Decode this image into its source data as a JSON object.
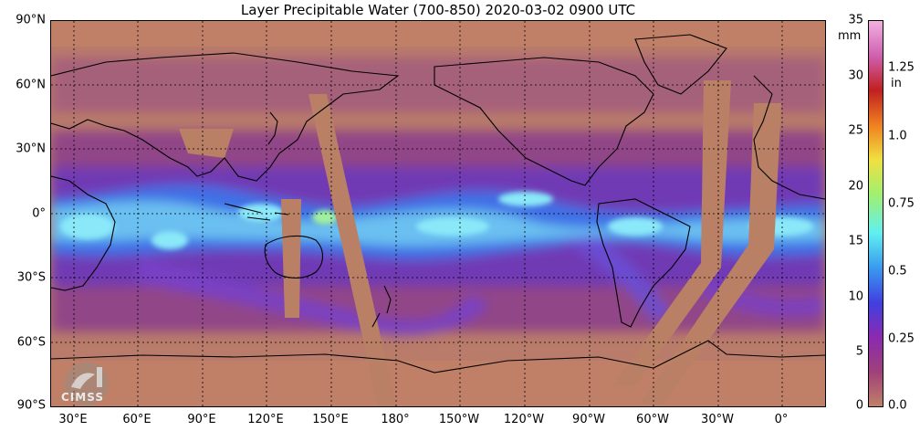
{
  "title": "Layer Precipitable Water (700-850)  2020-03-02 0900 UTC",
  "lat_labels": [
    "90°N",
    "60°N",
    "30°N",
    "0°",
    "30°S",
    "60°S",
    "90°S"
  ],
  "lon_labels": [
    "30°E",
    "60°E",
    "90°E",
    "120°E",
    "150°E",
    "180°",
    "150°W",
    "120°W",
    "90°W",
    "60°W",
    "30°W",
    "0°"
  ],
  "colorbar": {
    "unit_left": "mm",
    "unit_right": "in",
    "ticks_left": [
      "35",
      "30",
      "25",
      "20",
      "15",
      "10",
      "5",
      "0"
    ],
    "ticks_right": [
      "1.25",
      "1.0",
      "0.75",
      "0.5",
      "0.25",
      "0.0"
    ],
    "colors": [
      "#c08067",
      "#a0407a",
      "#8a2ab0",
      "#4040e0",
      "#3a9af0",
      "#60f0f0",
      "#a0f070",
      "#f0e040",
      "#f08020",
      "#c02020",
      "#d060b0",
      "#f0b0e0"
    ]
  },
  "colors": {
    "dry": "#b97b6a",
    "moist": "#8a3d8c",
    "wet": "#4a70e8",
    "very_wet": "#8ae8f8",
    "swath": "#b98066"
  },
  "logo": {
    "text": "CIMSS"
  }
}
